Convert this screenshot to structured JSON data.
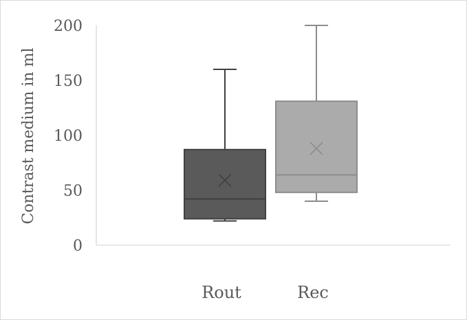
{
  "chart_data": {
    "type": "boxplot",
    "title": "",
    "xlabel": "",
    "ylabel": "Contrast medium in ml",
    "ylim": [
      0,
      200
    ],
    "yticks": [
      0,
      50,
      100,
      150,
      200
    ],
    "grid": false,
    "legend": "none",
    "categories": [
      "Rout",
      "Rec"
    ],
    "series": [
      {
        "min": 22,
        "q1": 24,
        "median": 42,
        "q3": 87,
        "max": 160,
        "mean": 59,
        "fill": "#5a5a5a",
        "stroke": "#404040"
      },
      {
        "min": 40,
        "q1": 48,
        "median": 64,
        "q3": 131,
        "max": 200,
        "mean": 88,
        "fill": "#ababab",
        "stroke": "#8c8c8c"
      }
    ]
  }
}
